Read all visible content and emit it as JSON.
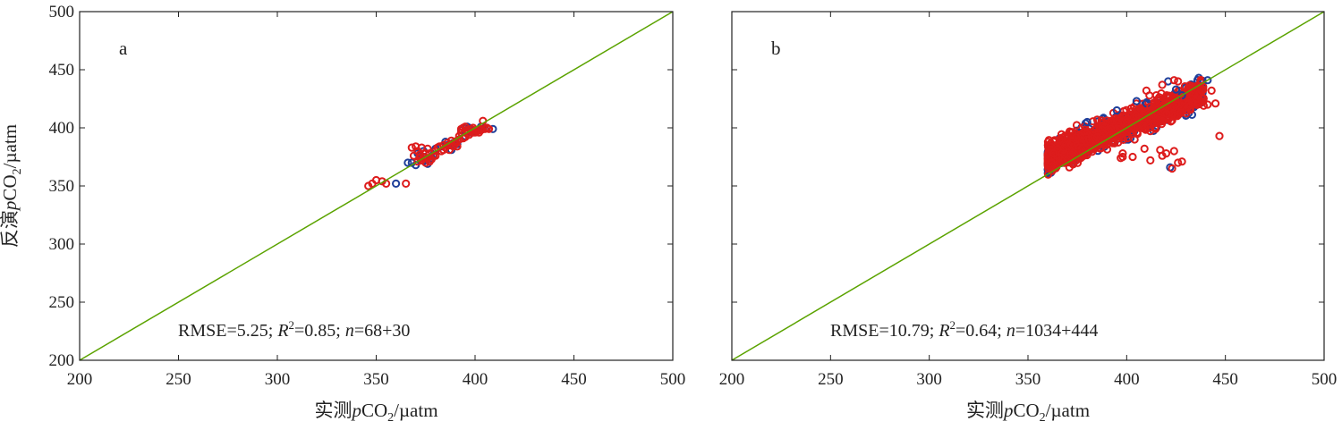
{
  "figure": {
    "ylabel": {
      "prefix": "反演",
      "var": "p",
      "chem": "CO",
      "sub": "2",
      "unit": "/µatm"
    },
    "colors": {
      "axis": "#222222",
      "line": "#5ba300",
      "marker_red": "#dd1c1c",
      "marker_blue": "#1f3f9a"
    }
  },
  "chart_data": [
    {
      "type": "scatter",
      "panel_label": "a",
      "xlabel": {
        "prefix": "实测",
        "var": "p",
        "chem": "CO",
        "sub": "2",
        "unit": "/µatm"
      },
      "xlim": [
        200,
        500
      ],
      "ylim": [
        200,
        500
      ],
      "xticks": [
        200,
        250,
        300,
        350,
        400,
        450,
        500
      ],
      "yticks": [
        200,
        250,
        300,
        350,
        400,
        450,
        500
      ],
      "grid": false,
      "reference_line": {
        "x": [
          200,
          500
        ],
        "y": [
          200,
          500
        ]
      },
      "stats": {
        "rmse": "RMSE=5.25;",
        "r2_symbol": "R",
        "r2_sup": "2",
        "r2_value": "=0.85;",
        "n_symbol": "n",
        "n_value": "=68+30"
      },
      "series": [
        {
          "marker": "circle-open",
          "color": "#1f3f9a",
          "points": [
            [
              368,
              370
            ],
            [
              372,
              376
            ],
            [
              375,
              372
            ],
            [
              378,
              374
            ],
            [
              383,
              384
            ],
            [
              386,
              385
            ],
            [
              389,
              387
            ],
            [
              392,
              390
            ],
            [
              395,
              393
            ],
            [
              398,
              396
            ],
            [
              401,
              398
            ],
            [
              404,
              399
            ],
            [
              406,
              400
            ],
            [
              409,
              399
            ],
            [
              360,
              352
            ],
            [
              370,
              368
            ],
            [
              393,
              398
            ],
            [
              396,
              401
            ],
            [
              380,
              382
            ],
            [
              374,
              380
            ],
            [
              388,
              381
            ],
            [
              400,
              397
            ],
            [
              376,
              369
            ],
            [
              371,
              378
            ],
            [
              385,
              388
            ],
            [
              397,
              400
            ],
            [
              403,
              401
            ],
            [
              391,
              386
            ],
            [
              366,
              370
            ],
            [
              379,
              377
            ]
          ]
        },
        {
          "marker": "circle-open",
          "color": "#dd1c1c",
          "points": [
            [
              346,
              350
            ],
            [
              348,
              352
            ],
            [
              350,
              355
            ],
            [
              353,
              354
            ],
            [
              355,
              352
            ],
            [
              365,
              352
            ],
            [
              368,
              383
            ],
            [
              370,
              384
            ],
            [
              371,
              380
            ],
            [
              372,
              377
            ],
            [
              373,
              372
            ],
            [
              374,
              375
            ],
            [
              375,
              370
            ],
            [
              376,
              382
            ],
            [
              377,
              378
            ],
            [
              378,
              373
            ],
            [
              379,
              376
            ],
            [
              380,
              380
            ],
            [
              382,
              384
            ],
            [
              384,
              385
            ],
            [
              386,
              387
            ],
            [
              387,
              381
            ],
            [
              388,
              386
            ],
            [
              389,
              384
            ],
            [
              390,
              388
            ],
            [
              391,
              389
            ],
            [
              392,
              390
            ],
            [
              393,
              396
            ],
            [
              394,
              400
            ],
            [
              395,
              401
            ],
            [
              396,
              395
            ],
            [
              397,
              394
            ],
            [
              398,
              397
            ],
            [
              399,
              396
            ],
            [
              400,
              398
            ],
            [
              401,
              397
            ],
            [
              402,
              398
            ],
            [
              403,
              399
            ],
            [
              404,
              406
            ],
            [
              405,
              399
            ],
            [
              406,
              400
            ],
            [
              407,
              399
            ],
            [
              369,
              376
            ],
            [
              371,
              371
            ],
            [
              373,
              383
            ],
            [
              375,
              378
            ],
            [
              377,
              371
            ],
            [
              380,
              376
            ],
            [
              383,
              380
            ],
            [
              385,
              383
            ],
            [
              387,
              385
            ],
            [
              390,
              386
            ],
            [
              392,
              393
            ],
            [
              394,
              391
            ],
            [
              396,
              398
            ],
            [
              398,
              399
            ],
            [
              400,
              396
            ],
            [
              403,
              398
            ],
            [
              372,
              374
            ],
            [
              376,
              374
            ],
            [
              381,
              383
            ],
            [
              384,
              381
            ],
            [
              388,
              389
            ],
            [
              391,
              384
            ],
            [
              393,
              399
            ],
            [
              395,
              392
            ],
            [
              399,
              400
            ],
            [
              402,
              396
            ]
          ]
        }
      ]
    },
    {
      "type": "scatter",
      "panel_label": "b",
      "xlabel": {
        "prefix": "实测",
        "var": "p",
        "chem": "CO",
        "sub": "2",
        "unit": "/µatm"
      },
      "xlim": [
        200,
        500
      ],
      "ylim": [
        200,
        500
      ],
      "xticks": [
        200,
        250,
        300,
        350,
        400,
        450,
        500
      ],
      "yticks": [
        200,
        250,
        300,
        350,
        400,
        450,
        500
      ],
      "grid": false,
      "reference_line": {
        "x": [
          200,
          500
        ],
        "y": [
          200,
          500
        ]
      },
      "stats": {
        "rmse": "RMSE=10.79;",
        "r2_symbol": "R",
        "r2_sup": "2",
        "r2_value": "=0.64;",
        "n_symbol": "n",
        "n_value": "=1034+444"
      },
      "cloud": {
        "x_range": [
          360,
          447
        ],
        "y_center_at_360": 374,
        "slope": 0.72,
        "y_spread": 11,
        "count_blue": 444,
        "count_red": 1034
      },
      "series": [
        {
          "marker": "circle-open",
          "color": "#1f3f9a",
          "points": [
            [
              422,
              366
            ],
            [
              421,
              440
            ],
            [
              425,
              433
            ],
            [
              380,
              405
            ],
            [
              405,
              423
            ],
            [
              441,
              441
            ],
            [
              395,
              415
            ],
            [
              428,
              428
            ],
            [
              410,
              421
            ]
          ]
        },
        {
          "marker": "circle-open",
          "color": "#dd1c1c",
          "points": [
            [
              447,
              393
            ],
            [
              441,
              420
            ],
            [
              443,
              432
            ],
            [
              424,
              441
            ],
            [
              426,
              440
            ],
            [
              418,
              437
            ],
            [
              415,
              428
            ],
            [
              410,
              432
            ],
            [
              424,
              380
            ],
            [
              426,
              370
            ],
            [
              428,
              371
            ],
            [
              423,
              365
            ],
            [
              420,
              378
            ],
            [
              418,
              376
            ],
            [
              417,
              381
            ],
            [
              412,
              372
            ],
            [
              409,
              382
            ],
            [
              403,
              375
            ],
            [
              398,
              378
            ],
            [
              397,
              374
            ],
            [
              398,
              375
            ],
            [
              430,
              415
            ],
            [
              435,
              425
            ],
            [
              439,
              419
            ],
            [
              445,
              421
            ],
            [
              433,
              422
            ],
            [
              388,
              395
            ],
            [
              392,
              399
            ],
            [
              385,
              392
            ],
            [
              377,
              388
            ],
            [
              372,
              386
            ],
            [
              368,
              381
            ],
            [
              365,
              382
            ],
            [
              362,
              375
            ],
            [
              360,
              377
            ],
            [
              363,
              378
            ],
            [
              366,
              370
            ],
            [
              370,
              373
            ],
            [
              375,
              380
            ],
            [
              381,
              390
            ],
            [
              386,
              385
            ],
            [
              391,
              393
            ],
            [
              396,
              401
            ],
            [
              400,
              405
            ],
            [
              405,
              410
            ],
            [
              412,
              418
            ],
            [
              419,
              420
            ],
            [
              426,
              425
            ],
            [
              437,
              430
            ],
            [
              400,
              394
            ],
            [
              404,
              390
            ],
            [
              408,
              402
            ],
            [
              414,
              404
            ]
          ]
        }
      ]
    }
  ]
}
